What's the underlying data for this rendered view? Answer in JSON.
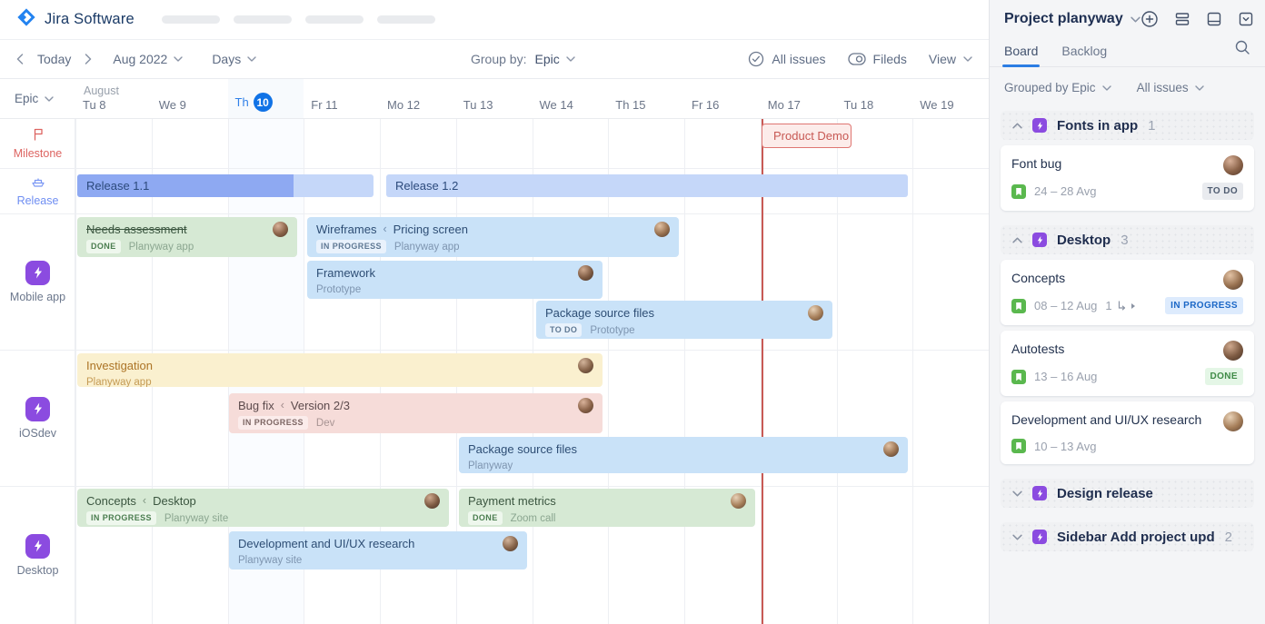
{
  "app": {
    "logo_text": "Jira Software"
  },
  "toolbar": {
    "today_label": "Today",
    "month_value": "Aug 2022",
    "zoom_value": "Days",
    "group_by_label": "Group by:",
    "group_by_value": "Epic",
    "all_issues_label": "All issues",
    "fields_label": "Fileds",
    "view_label": "View"
  },
  "timeline": {
    "epic_filter_label": "Epic",
    "month_label": "August",
    "today_index": 2,
    "days": [
      {
        "dow": "Tu",
        "num": "8"
      },
      {
        "dow": "We",
        "num": "9"
      },
      {
        "dow": "Th",
        "num": "10"
      },
      {
        "dow": "Fr",
        "num": "11"
      },
      {
        "dow": "Mo",
        "num": "12"
      },
      {
        "dow": "Tu",
        "num": "13"
      },
      {
        "dow": "We",
        "num": "14"
      },
      {
        "dow": "Th",
        "num": "15"
      },
      {
        "dow": "Fr",
        "num": "16"
      },
      {
        "dow": "Mo",
        "num": "17"
      },
      {
        "dow": "Tu",
        "num": "18"
      },
      {
        "dow": "We",
        "num": "19"
      }
    ],
    "row_labels": {
      "milestone": "Milestone",
      "release": "Release",
      "epics": [
        "Mobile app",
        "iOSdev",
        "Desktop"
      ]
    },
    "milestone": {
      "label": "Product Demo"
    },
    "releases": [
      {
        "label": "Release 1.1"
      },
      {
        "label": "Release 1.2"
      }
    ],
    "bars": [
      {
        "title": "Needs assessment",
        "badge": "DONE",
        "subtitle": "Planyway app",
        "color": "green",
        "strike": true
      },
      {
        "title": "Wireframes",
        "title2": "Pricing screen",
        "badge": "IN PROGRESS",
        "subtitle": "Planyway app",
        "color": "blue"
      },
      {
        "title": "Framework",
        "subtitle": "Prototype",
        "color": "blue"
      },
      {
        "title": "Package source files",
        "badge": "TO DO",
        "subtitle": "Prototype",
        "color": "blue"
      },
      {
        "title": "Investigation",
        "subtitle": "Planyway app",
        "color": "yellow"
      },
      {
        "title": "Bug fix",
        "title2": "Version 2/3",
        "badge": "IN PROGRESS",
        "subtitle": "Dev",
        "color": "pink"
      },
      {
        "title": "Package source files",
        "subtitle": "Planyway",
        "color": "blue"
      },
      {
        "title": "Concepts",
        "title2": "Desktop",
        "badge": "IN PROGRESS",
        "subtitle": "Planyway site",
        "color": "green"
      },
      {
        "title": "Payment metrics",
        "badge": "DONE",
        "subtitle": "Zoom call",
        "color": "green"
      },
      {
        "title": "Development and UI/UX research",
        "subtitle": "Planyway site",
        "color": "blue"
      }
    ]
  },
  "sidebar": {
    "project_title": "Project planyway",
    "tabs": [
      {
        "label": "Board",
        "active": true
      },
      {
        "label": "Backlog",
        "active": false
      }
    ],
    "filters": {
      "grouped_by": "Grouped by Epic",
      "issues": "All issues"
    },
    "sections": [
      {
        "title": "Fonts in app",
        "count": "1",
        "collapsed": false,
        "cards": [
          {
            "title": "Font bug",
            "date": "24 – 28 Avg",
            "badge": "TO DO",
            "badge_type": "todo"
          }
        ]
      },
      {
        "title": "Desktop",
        "count": "3",
        "collapsed": false,
        "cards": [
          {
            "title": "Concepts",
            "date": "08 – 12 Aug",
            "extra": "1",
            "badge": "IN PROGRESS",
            "badge_type": "inprogress"
          },
          {
            "title": "Autotests",
            "date": "13 – 16 Aug",
            "badge": "DONE",
            "badge_type": "done"
          },
          {
            "title": "Development and UI/UX research",
            "date": "10 – 13 Avg"
          }
        ]
      },
      {
        "title": "Design release",
        "count": "",
        "collapsed": true,
        "cards": []
      },
      {
        "title": "Sidebar Add project upd",
        "count": "2",
        "collapsed": true,
        "cards": []
      }
    ]
  },
  "colors": {
    "accent_blue": "#1173e6",
    "epic_purple": "#8b4be0",
    "story_green": "#5ab84e",
    "milestone_red": "#c85a55",
    "release_bar": "#c5d7f9",
    "release_bar_progress": "#8ea9f2"
  },
  "icons": [
    "jira-logo-icon",
    "chevron-left-icon",
    "chevron-right-icon",
    "chevron-down-icon",
    "chevron-up-icon",
    "check-circle-icon",
    "toggle-icon",
    "flag-icon",
    "ship-icon",
    "bolt-icon",
    "plus-circle-icon",
    "rows-icon",
    "panel-icon",
    "box-chevron-icon",
    "search-icon",
    "story-bookmark-icon",
    "subtask-icon",
    "caret-right-icon"
  ]
}
